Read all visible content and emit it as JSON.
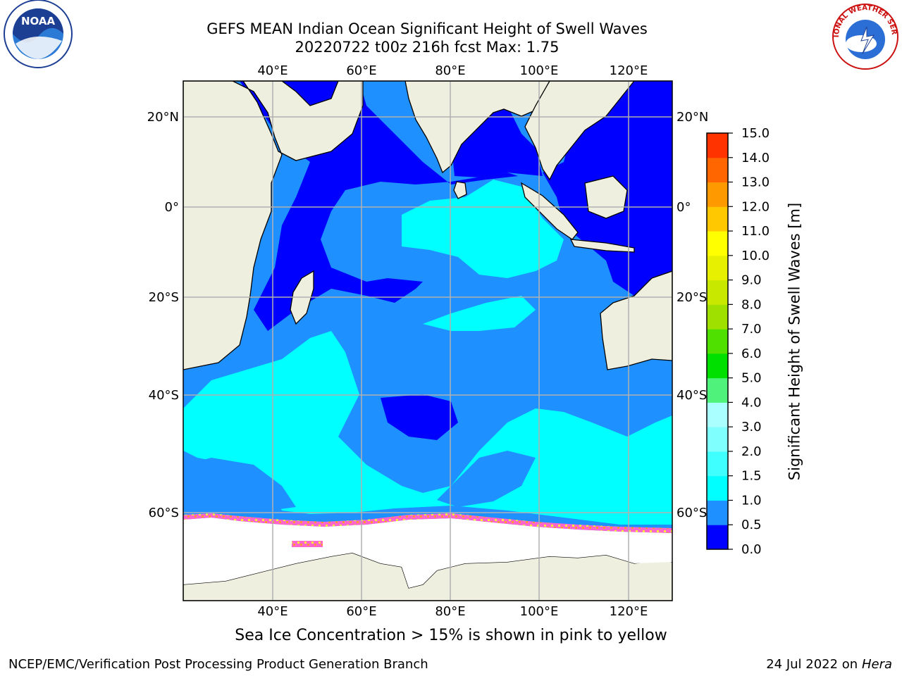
{
  "title": {
    "line1": "GEFS MEAN Indian Ocean Significant Height of Swell Waves",
    "line2": "20220722 t00z 216h fcst   Max: 1.75"
  },
  "map": {
    "projection": "cylindrical",
    "lon_range": [
      20,
      130
    ],
    "lat_range": [
      -70,
      28
    ],
    "lon_ticks": [
      "40°E",
      "60°E",
      "80°E",
      "100°E",
      "120°E"
    ],
    "lat_ticks": [
      "20°N",
      "0°",
      "20°S",
      "40°S",
      "60°S"
    ],
    "land_color": "#efefdf",
    "ice_color": "#ffffff",
    "gridlines": true
  },
  "colorbar": {
    "label": "Significant Height of Swell Waves [m]",
    "ticks": [
      "0.0",
      "0.5",
      "1.0",
      "1.5",
      "2.0",
      "3.0",
      "4.0",
      "5.0",
      "6.0",
      "7.0",
      "8.0",
      "9.0",
      "10.0",
      "11.0",
      "12.0",
      "13.0",
      "14.0",
      "15.0"
    ],
    "colors": [
      "#0000ff",
      "#1e90ff",
      "#00ffff",
      "#40ffff",
      "#80ffff",
      "#aaffff",
      "#4ff27a",
      "#00e000",
      "#50e000",
      "#a0e000",
      "#c8e800",
      "#e6f000",
      "#ffff00",
      "#ffc800",
      "#ff9900",
      "#ff6600",
      "#ff3300",
      "#ff0000"
    ]
  },
  "caption": "Sea Ice Concentration > 15% is shown in pink to yellow",
  "footer": {
    "left": "NCEP/EMC/Verification Post Processing Product Generation Branch",
    "right_prefix": "24 Jul 2022 on ",
    "right_host": "Hera"
  },
  "logos": {
    "noaa_text": "NOAA",
    "nws_text": "NATIONAL WEATHER SERVICE"
  }
}
